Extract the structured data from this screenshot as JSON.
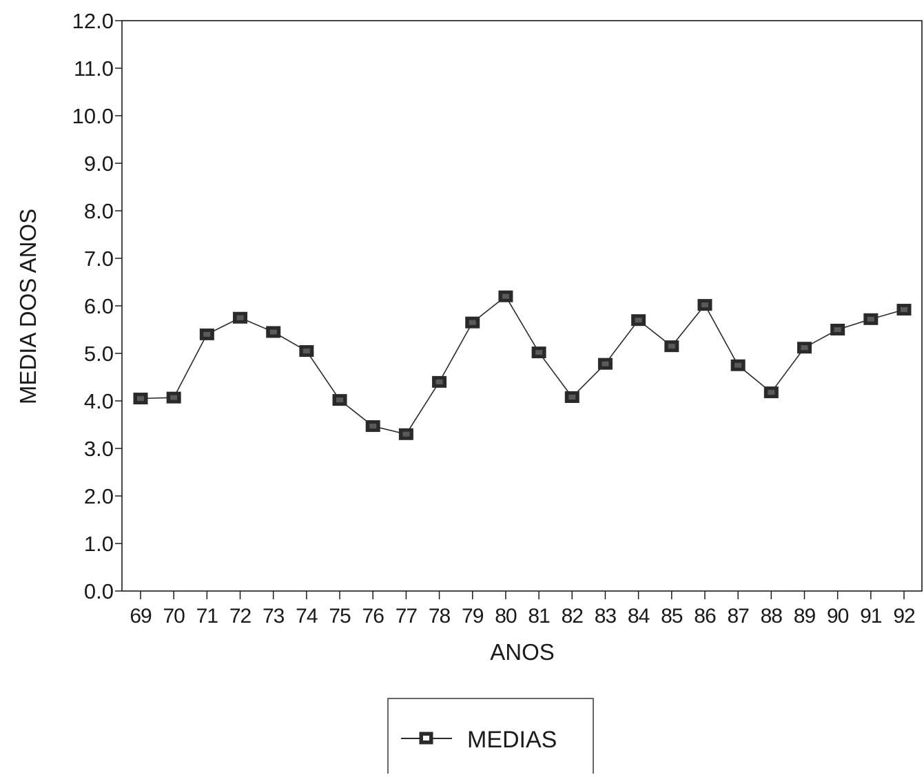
{
  "chart_data": {
    "type": "line",
    "title": "",
    "xlabel": "ANOS",
    "ylabel": "MEDIA DOS ANOS",
    "ylim": [
      0,
      12
    ],
    "yticks": [
      "0.0",
      "1.0",
      "2.0",
      "3.0",
      "4.0",
      "5.0",
      "6.0",
      "7.0",
      "8.0",
      "9.0",
      "10.0",
      "11.0",
      "12.0"
    ],
    "categories": [
      "69",
      "70",
      "71",
      "72",
      "73",
      "74",
      "75",
      "76",
      "77",
      "78",
      "79",
      "80",
      "81",
      "82",
      "83",
      "84",
      "85",
      "86",
      "87",
      "88",
      "89",
      "90",
      "91",
      "92"
    ],
    "series": [
      {
        "name": "MEDIAS",
        "values": [
          4.05,
          4.07,
          5.4,
          5.75,
          5.45,
          5.05,
          4.02,
          3.47,
          3.3,
          4.4,
          5.65,
          6.2,
          5.02,
          4.08,
          4.78,
          5.7,
          5.15,
          6.02,
          4.75,
          4.18,
          5.12,
          5.5,
          5.72,
          5.92
        ]
      }
    ],
    "grid": false,
    "legend_position": "bottom-center",
    "colors": {
      "line": "#2a2a2a",
      "marker": "#2a2a2a",
      "axis": "#1a1a1a"
    }
  }
}
